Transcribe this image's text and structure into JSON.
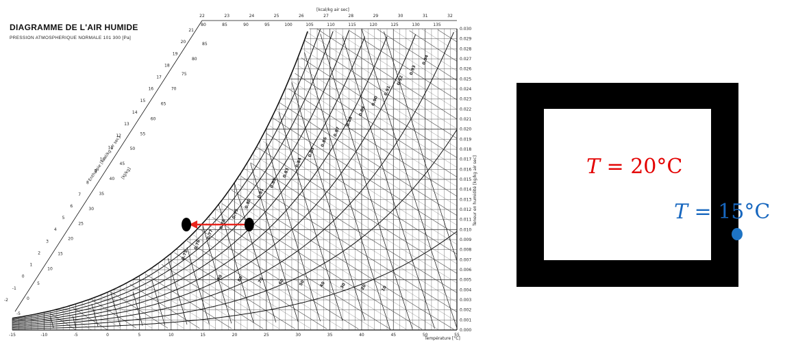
{
  "chart": {
    "title": "DIAGRAMME DE L'AIR HUMIDE",
    "subtitle": "PRESSION ATMOSPHERIQUE NORMALE 101 300 [Pa]",
    "top_axis_label": "[kcal/kg air sec]",
    "top_ticks": [
      "22",
      "23",
      "24",
      "25",
      "26",
      "27",
      "28",
      "29",
      "30",
      "31",
      "32"
    ],
    "left_axis_label": "Enthalpie [kcal/kg air sec]",
    "left_axis_label_2": "[kJ/kg]",
    "right_axis_label": "Teneur en humidité [kg/kg air sec]",
    "bottom_axis_label": "Température [°C]",
    "enthalpy_line_labels": [
      "80",
      "85",
      "90",
      "95",
      "100",
      "105",
      "110",
      "115",
      "120",
      "125",
      "130",
      "135"
    ],
    "left_kcal_ticks": [
      "21",
      "20",
      "19",
      "18",
      "17",
      "16",
      "15",
      "14",
      "13",
      "12",
      "11",
      "10",
      "9",
      "8",
      "7",
      "6",
      "5",
      "4",
      "3",
      "2",
      "1",
      "0",
      "-1",
      "-2"
    ],
    "left_kj_ticks": [
      "85",
      "80",
      "75",
      "70",
      "65",
      "60",
      "55",
      "50",
      "45",
      "40",
      "35",
      "30",
      "25",
      "20",
      "15",
      "10",
      "5",
      "0",
      "-5"
    ],
    "right_ticks": [
      "0.030",
      "0.029",
      "0.028",
      "0.027",
      "0.026",
      "0.025",
      "0.024",
      "0.023",
      "0.022",
      "0.021",
      "0.020",
      "0.019",
      "0.018",
      "0.017",
      "0.016",
      "0.015",
      "0.014",
      "0.013",
      "0.012",
      "0.011",
      "0.010",
      "0.009",
      "0.008",
      "0.007",
      "0.006",
      "0.005",
      "0.004",
      "0.003",
      "0.002",
      "0.001",
      "0.000"
    ],
    "bottom_ticks": [
      "-15",
      "-10",
      "-5",
      "0",
      "5",
      "10",
      "15",
      "20",
      "25",
      "30",
      "35",
      "40",
      "45",
      "50",
      "55"
    ],
    "volume_labels": [
      "0.94",
      "0.93",
      "0.92",
      "0.91",
      "0.90",
      "0.89",
      "0.88",
      "0.87",
      "0.86",
      "0.85",
      "0.84",
      "0.83",
      "0.82",
      "0.81",
      "0.80",
      "0.79",
      "0.78",
      "0.77",
      "0.76",
      "0.75"
    ],
    "rh_labels": [
      "90",
      "80",
      "70",
      "60",
      "50",
      "40",
      "30",
      "20",
      "10"
    ],
    "colors": {
      "ink": "#111111",
      "grid": "#444444",
      "arrow": "#e8241c",
      "point": "#000000"
    }
  },
  "room": {
    "interior_symbol": "T",
    "interior_value": " = 20°C",
    "wall_symbol": "T",
    "wall_value": " = 15°C",
    "colors": {
      "wall": "#000000",
      "interior_text": "#e30000",
      "wall_text": "#1767bf",
      "wall_point": "#1e74c4"
    }
  }
}
